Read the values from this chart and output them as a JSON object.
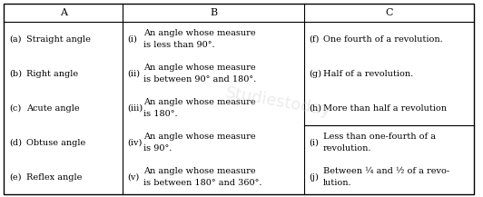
{
  "col_headers": [
    "A",
    "B",
    "C"
  ],
  "col_A": [
    [
      "(a)",
      "Straight angle"
    ],
    [
      "(b)",
      "Right angle"
    ],
    [
      "(c)",
      "Acute angle"
    ],
    [
      "(d)",
      "Obtuse angle"
    ],
    [
      "(e)",
      "Reflex angle"
    ]
  ],
  "col_B": [
    [
      "(i)",
      "An angle whose measure\nis less than 90°."
    ],
    [
      "(ii)",
      "An angle whose measure\nis between 90° and 180°."
    ],
    [
      "(iii)",
      "An angle whose measure\nis 180°."
    ],
    [
      "(iv)",
      "An angle whose measure\nis 90°."
    ],
    [
      "(v)",
      "An angle whose measure\nis between 180° and 360°."
    ]
  ],
  "col_C_top": [
    [
      "(f)",
      "One fourth of a revolution."
    ],
    [
      "(g)",
      "Half of a revolution."
    ],
    [
      "(h)",
      "More than half a revolution"
    ]
  ],
  "col_C_bot": [
    [
      "(i)",
      "Less than one-fourth of a\nrevolution."
    ],
    [
      "(j)",
      "Between ¼ and ½ of a revo-\nlution."
    ]
  ],
  "bg_color": "#ffffff",
  "border_color": "#000000",
  "font_size": 7.0,
  "header_font_size": 8.0
}
